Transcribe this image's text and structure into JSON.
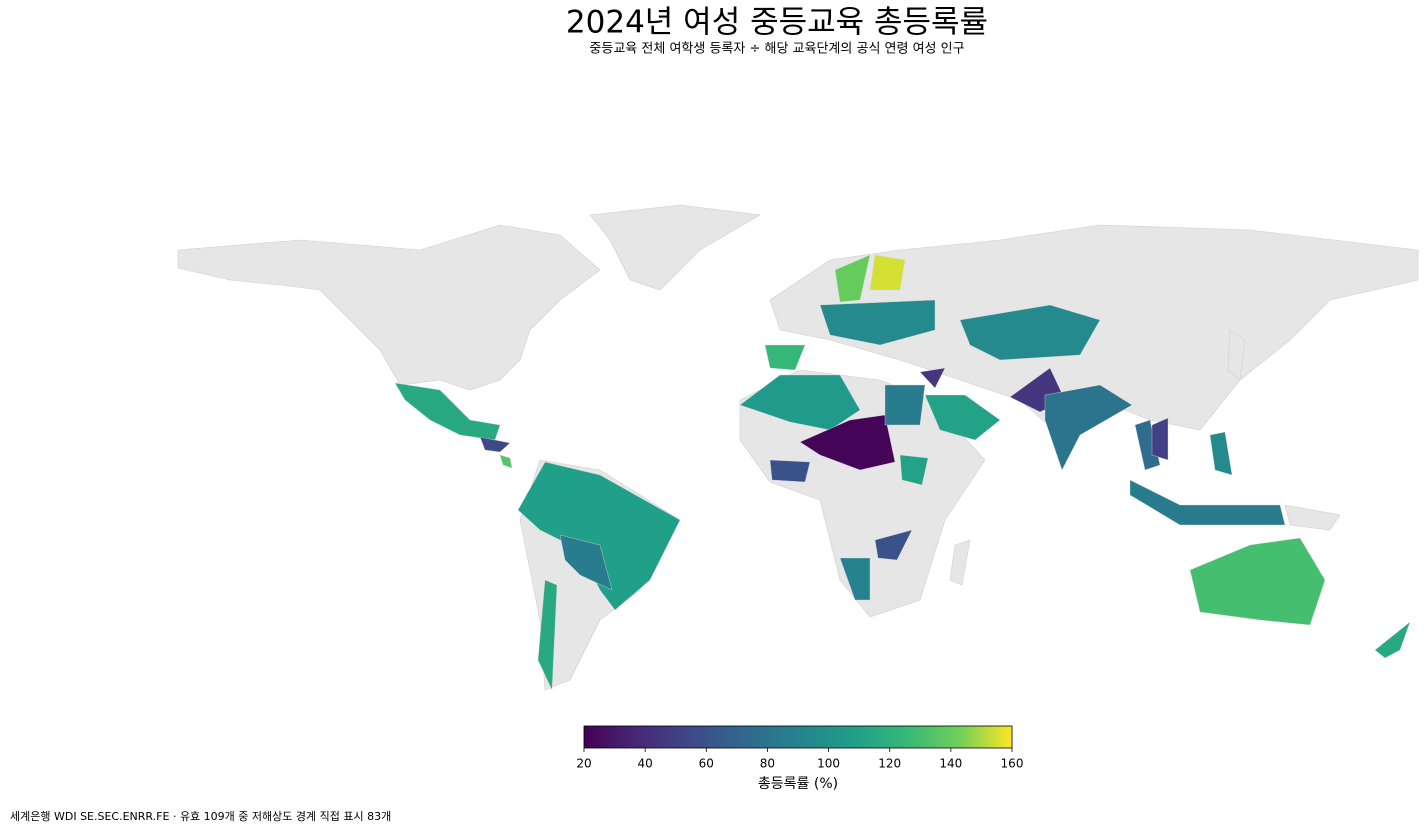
{
  "chart_data": {
    "type": "choropleth",
    "title": "2024년 여성 중등교육 총등록률",
    "subtitle": "중등교육 전체 여학생 등록자 ÷ 해당 교육단계의 공식 연령 여성 인구",
    "colormap": "viridis",
    "clim": [
      20,
      160
    ],
    "cticks": [
      20,
      40,
      60,
      80,
      100,
      120,
      140,
      160
    ],
    "colorbar_label": "총등록률 (%)",
    "values": [
      115,
      55,
      135,
      108,
      85,
      115,
      125,
      140,
      155,
      95,
      105,
      22,
      60,
      85,
      110,
      45,
      45,
      80,
      95,
      75,
      50,
      85,
      95,
      130,
      115,
      90,
      60,
      110
    ],
    "footnote": "세계은행 WDI SE.SEC.ENRR.FE · 유효 109개 중 저해상도 경계 직접 표시 83개"
  }
}
